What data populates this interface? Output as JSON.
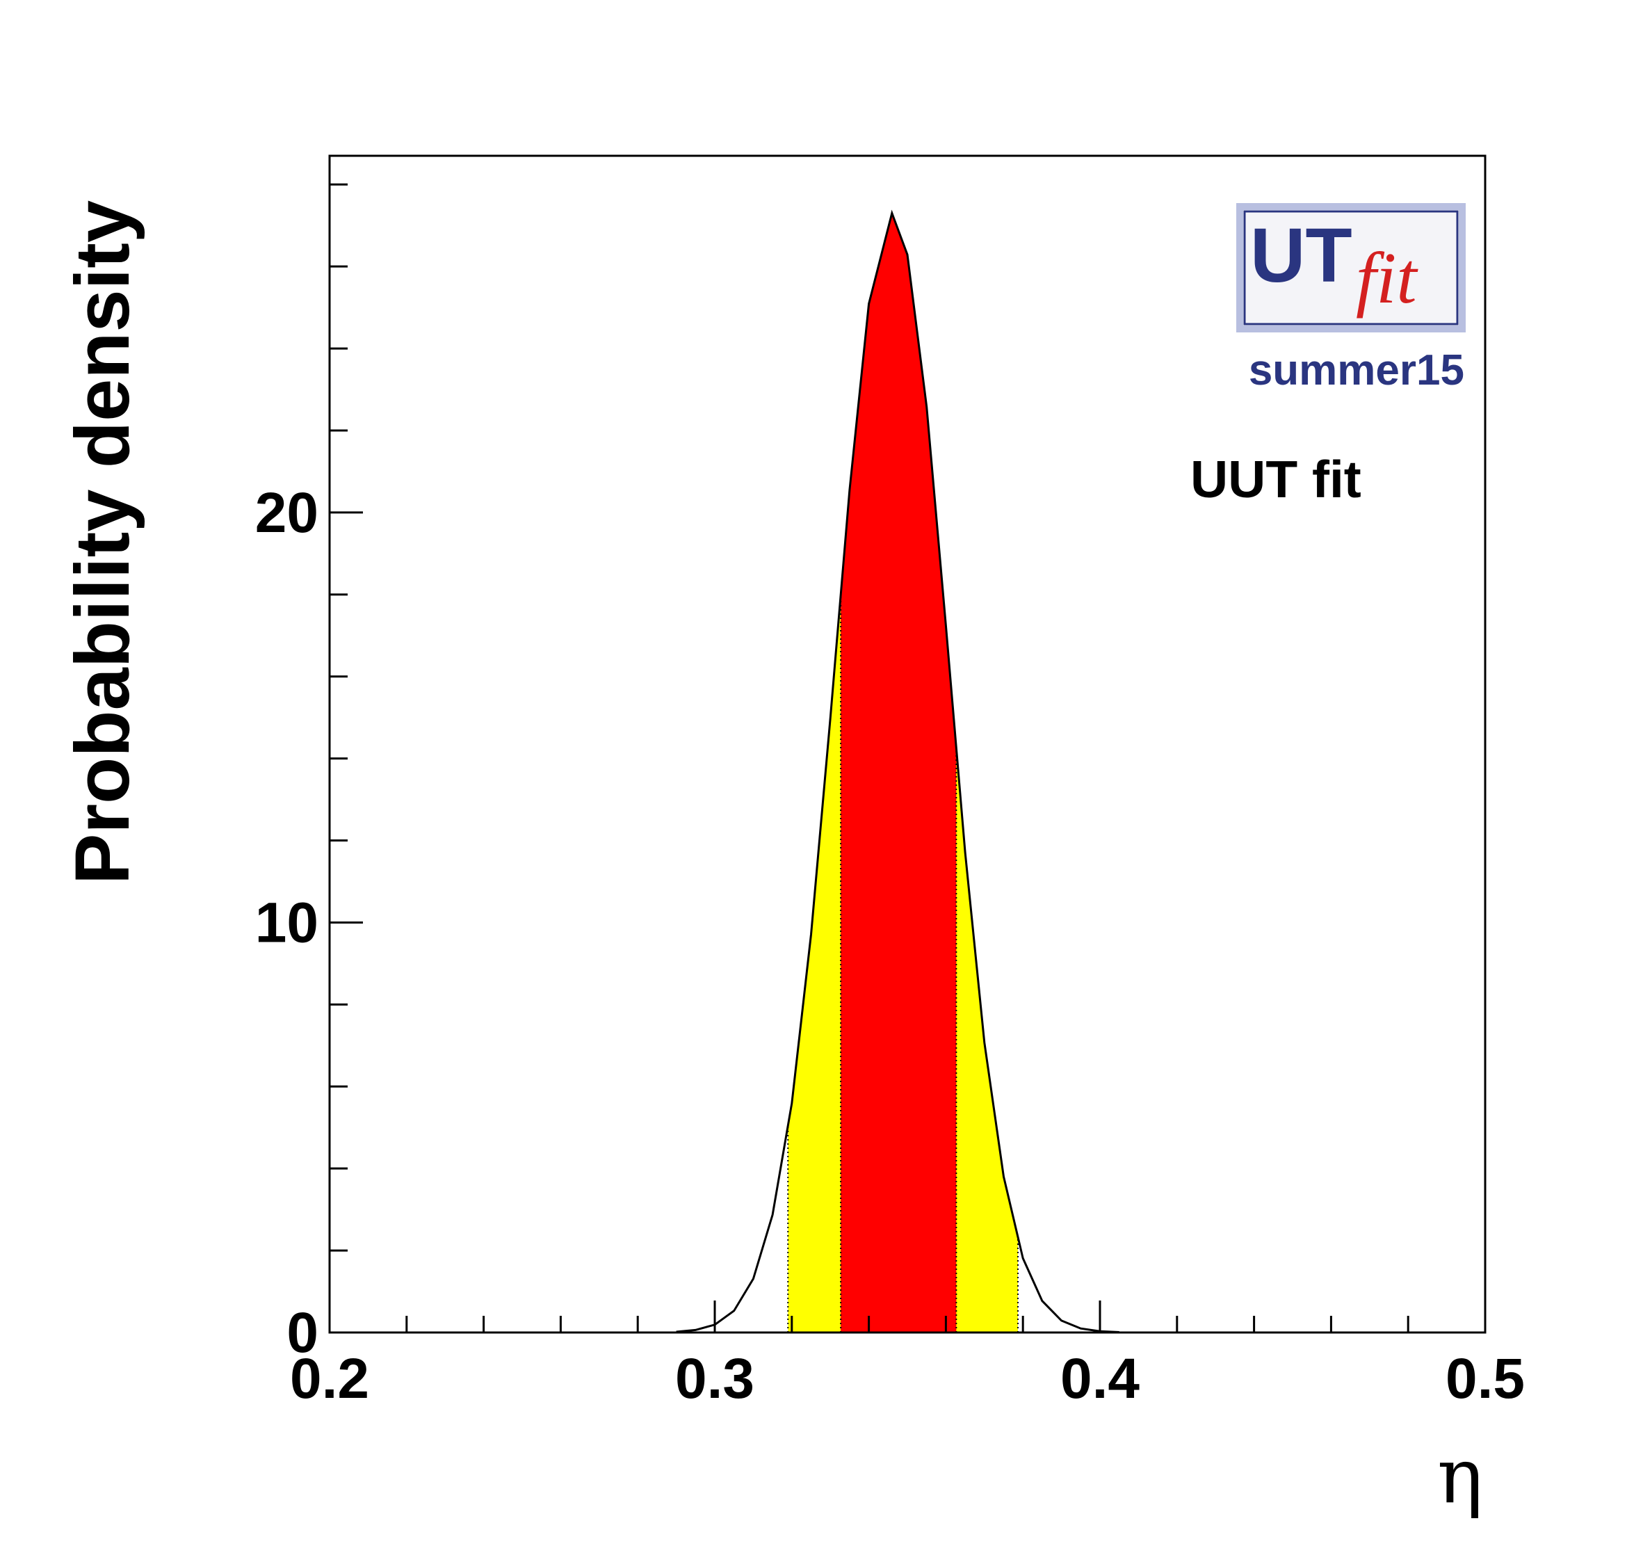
{
  "chart_data": {
    "type": "area",
    "x_label": "η",
    "y_label": "Probability density",
    "annotations": [
      "UUT fit"
    ],
    "logo": {
      "main": "UT",
      "sub": "fit",
      "tag": "summer15"
    },
    "x": [
      0.29,
      0.295,
      0.3,
      0.305,
      0.31,
      0.315,
      0.32,
      0.325,
      0.33,
      0.335,
      0.34,
      0.346,
      0.35,
      0.355,
      0.36,
      0.365,
      0.37,
      0.375,
      0.38,
      0.385,
      0.39,
      0.395,
      0.4,
      0.405
    ],
    "values": [
      0.017,
      0.061,
      0.19,
      0.53,
      1.31,
      2.87,
      5.59,
      9.71,
      14.98,
      20.55,
      25.09,
      27.3,
      26.29,
      22.58,
      17.24,
      11.71,
      7.07,
      3.8,
      1.81,
      0.77,
      0.29,
      0.098,
      0.029,
      0.008
    ],
    "color": "#000000",
    "bands": [
      {
        "range": [
          0.319,
          0.3787
        ],
        "color": "#ffff00"
      },
      {
        "range": [
          0.3327,
          0.3627
        ],
        "color": "#ff0000"
      }
    ],
    "xlim": [
      0.2,
      0.5
    ],
    "ylim": [
      0,
      28.7
    ],
    "xticks": [
      0.2,
      0.3,
      0.4,
      0.5
    ],
    "yticks": [
      0,
      10,
      20
    ],
    "xminorticks": [
      0.22,
      0.24,
      0.26,
      0.28,
      0.32,
      0.34,
      0.36,
      0.38,
      0.42,
      0.44,
      0.46,
      0.48
    ],
    "yminorticks": [
      2,
      4,
      6,
      8,
      12,
      14,
      16,
      18,
      22,
      24,
      26,
      28
    ]
  }
}
